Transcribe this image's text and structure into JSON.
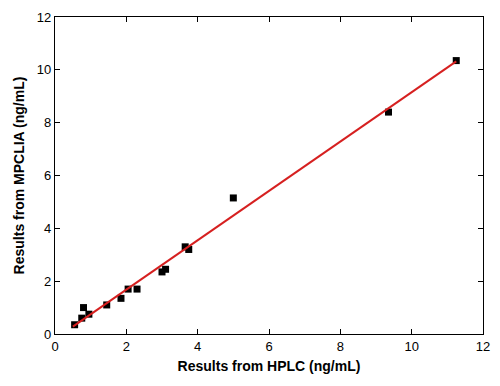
{
  "chart_data": {
    "type": "scatter",
    "x_label": "Results from HPLC (ng/mL)",
    "y_label": "Results from MPCLIA (ng/mL)",
    "xlim": [
      0,
      12
    ],
    "ylim": [
      0,
      12
    ],
    "xticks": [
      0,
      2,
      4,
      6,
      8,
      10,
      12
    ],
    "yticks": [
      0,
      2,
      4,
      6,
      8,
      10,
      12
    ],
    "grid": false,
    "series": [
      {
        "type": "scatter",
        "color": "#000000",
        "marker": "square",
        "x": [
          0.55,
          0.75,
          0.8,
          0.95,
          1.45,
          1.85,
          2.05,
          2.3,
          3.0,
          3.1,
          3.65,
          3.75,
          5.0,
          9.35,
          11.25
        ],
        "values": [
          0.35,
          0.6,
          1.0,
          0.75,
          1.1,
          1.35,
          1.7,
          1.7,
          2.35,
          2.45,
          3.3,
          3.2,
          5.15,
          8.4,
          10.35
        ]
      },
      {
        "type": "line",
        "color": "#d62020",
        "line_style": "solid",
        "x": [
          0.5,
          11.25
        ],
        "values": [
          0.28,
          10.32
        ]
      }
    ]
  }
}
